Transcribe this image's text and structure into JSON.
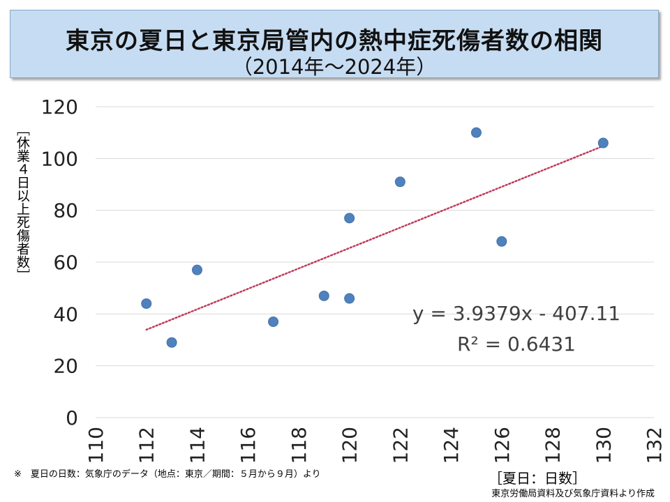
{
  "page": {
    "footnote": "※　夏日の日数：気象庁のデータ（地点：東京／期間：５月から９月）より",
    "source": "東京労働局資料及び気象庁資料より作成"
  },
  "colors": {
    "title_background": "#c6dcf2",
    "point": "#4f81bd",
    "trendline": "#c0395a",
    "gridline": "#d9d9d9"
  },
  "chart_data": {
    "type": "scatter",
    "title": "東京の夏日と東京局管内の熱中症死傷者数の相関",
    "subtitle": "（2014年～2024年）",
    "xlabel": "［夏日：日数］",
    "ylabel": "［休業４日以上死傷者数］",
    "xlim": [
      110,
      132
    ],
    "ylim": [
      0,
      120
    ],
    "x_ticks": [
      110,
      112,
      114,
      116,
      118,
      120,
      122,
      124,
      126,
      128,
      130,
      132
    ],
    "y_ticks": [
      0,
      20,
      40,
      60,
      80,
      100,
      120
    ],
    "grid": {
      "horizontal": true,
      "vertical": false
    },
    "legend": "none",
    "points": [
      {
        "x": 112,
        "y": 44
      },
      {
        "x": 113,
        "y": 29
      },
      {
        "x": 114,
        "y": 57
      },
      {
        "x": 117,
        "y": 37
      },
      {
        "x": 119,
        "y": 47
      },
      {
        "x": 120,
        "y": 77
      },
      {
        "x": 120,
        "y": 46
      },
      {
        "x": 122,
        "y": 91
      },
      {
        "x": 125,
        "y": 110
      },
      {
        "x": 126,
        "y": 68
      },
      {
        "x": 130,
        "y": 106
      }
    ],
    "trendline": {
      "type": "linear",
      "slope": 3.9379,
      "intercept": -407.11,
      "x_range": [
        112,
        130
      ],
      "equation": "y = 3.9379x - 407.11",
      "r_squared": "R² = 0.6431"
    }
  }
}
